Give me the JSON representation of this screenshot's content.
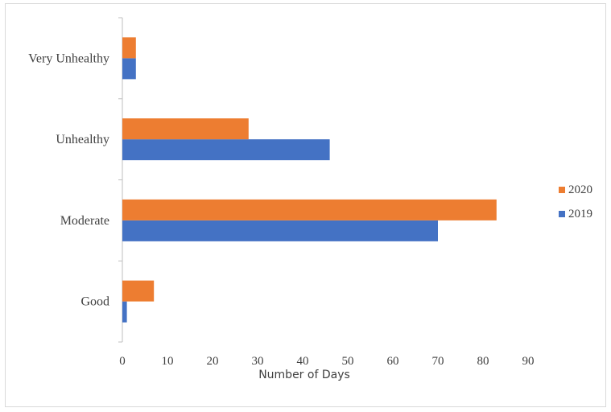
{
  "chart_data": {
    "type": "bar",
    "orientation": "horizontal",
    "categories": [
      "Good",
      "Moderate",
      "Unhealthy",
      "Very Unhealthy"
    ],
    "series": [
      {
        "name": "2019",
        "values": [
          1,
          70,
          46,
          3
        ],
        "color": "#4472c4"
      },
      {
        "name": "2020",
        "values": [
          7,
          83,
          28,
          3
        ],
        "color": "#ed7d31"
      }
    ],
    "xlabel": "Number of Days",
    "ylabel": "",
    "xlim": [
      0,
      90
    ],
    "xticks": [
      0,
      10,
      20,
      30,
      40,
      50,
      60,
      70,
      80,
      90
    ],
    "grid": false,
    "legend": {
      "position": "right",
      "order": [
        "2020",
        "2019"
      ]
    }
  }
}
